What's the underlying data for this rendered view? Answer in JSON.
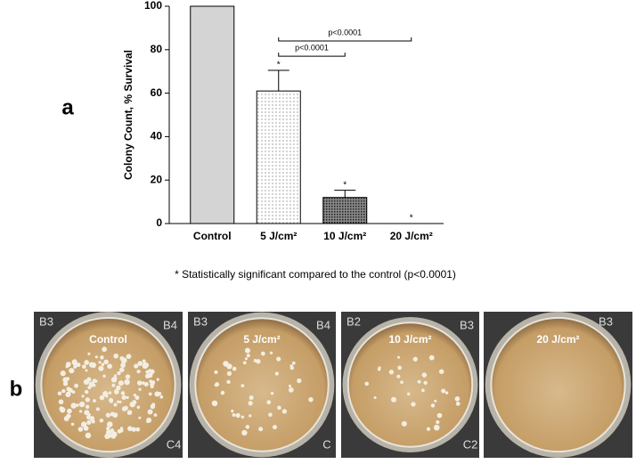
{
  "chart_data": {
    "type": "bar",
    "y_label": "Colony Count, % Survival",
    "categories": [
      "Control",
      "5 J/cm²",
      "10 J/cm²",
      "20 J/cm²"
    ],
    "values": [
      100,
      61,
      12,
      0
    ],
    "errors": [
      0,
      9.5,
      3.3,
      0
    ],
    "ylim": [
      0,
      100
    ],
    "yticks": [
      0,
      20,
      40,
      60,
      80,
      100
    ],
    "edgecolor": "#000000",
    "annotations": [
      {
        "text": "*",
        "at": "5 J/cm²"
      },
      {
        "text": "*",
        "at": "10 J/cm²"
      },
      {
        "text": "*",
        "at": "20 J/cm²"
      }
    ],
    "brackets": [
      {
        "text": "p<0.0001",
        "from": "5 J/cm²",
        "to": "10 J/cm²",
        "y": 77
      },
      {
        "text": "p<0.0001",
        "from": "5 J/cm²",
        "to": "20 J/cm²",
        "y": 84
      }
    ],
    "note": "* Statistically significant compared to the control (p<0.0001)"
  },
  "panels": [
    "a",
    "b"
  ],
  "photos": [
    {
      "label": "Control",
      "wells": [
        "B3",
        "B4",
        "C4"
      ]
    },
    {
      "label": "5 J/cm²",
      "wells": [
        "B3",
        "B4",
        "C"
      ]
    },
    {
      "label": "10 J/cm²",
      "wells": [
        "B2",
        "B3",
        "C2"
      ]
    },
    {
      "label": "20 J/cm²",
      "wells": [
        "B3"
      ]
    }
  ]
}
